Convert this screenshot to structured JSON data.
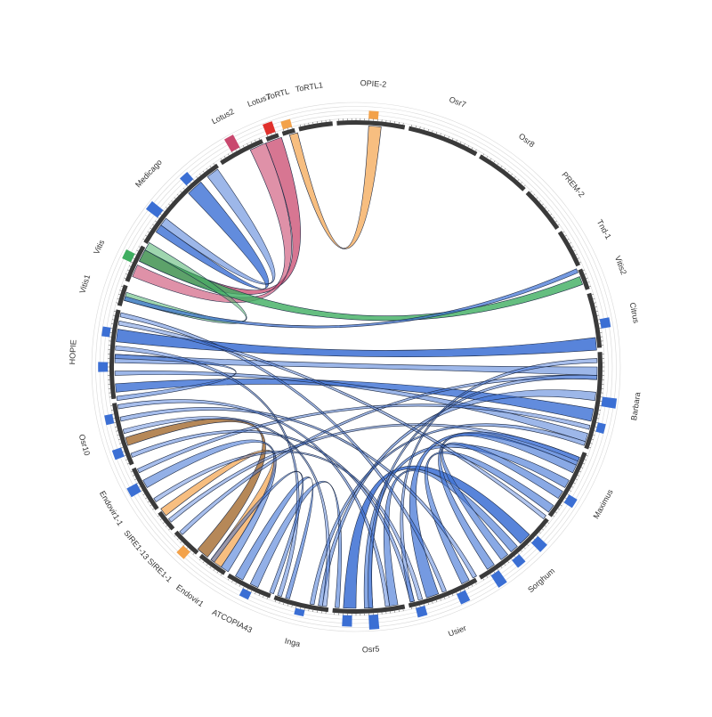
{
  "diagram": {
    "type": "circos-chord",
    "colors": {
      "band": "#3a3a3a",
      "blue": "#3b6fd4",
      "pink": "#c9486e",
      "orange": "#f3a24a",
      "green": "#3fae60",
      "brown": "#a46a2e",
      "red": "#e0312c",
      "guide": "#d8d8d8"
    },
    "segments": [
      {
        "id": "opie2",
        "label": "OPIE-2",
        "start": 355,
        "end": 12
      },
      {
        "id": "osr7",
        "label": "Osr7",
        "start": 12,
        "end": 30
      },
      {
        "id": "osr8",
        "label": "Osr8",
        "start": 30,
        "end": 44
      },
      {
        "id": "prem2",
        "label": "PREM-2",
        "start": 44,
        "end": 56
      },
      {
        "id": "tnd1",
        "label": "Tnd-1",
        "start": 56,
        "end": 66
      },
      {
        "id": "vitis2",
        "label": "Vitis2",
        "start": 66,
        "end": 72
      },
      {
        "id": "citrus",
        "label": "Citrus",
        "start": 72,
        "end": 86
      },
      {
        "id": "barbara",
        "label": "Barbara",
        "start": 86,
        "end": 110
      },
      {
        "id": "maximus",
        "label": "Maximus",
        "start": 110,
        "end": 128
      },
      {
        "id": "sorghum",
        "label": "Sorghum",
        "start": 128,
        "end": 150
      },
      {
        "id": "usier",
        "label": "Usier",
        "start": 150,
        "end": 168
      },
      {
        "id": "osr5",
        "label": "Osr5",
        "start": 168,
        "end": 186
      },
      {
        "id": "inga",
        "label": "Inga",
        "start": 186,
        "end": 200
      },
      {
        "id": "atcopia43",
        "label": "ATCOPIA43",
        "start": 200,
        "end": 212
      },
      {
        "id": "endovir1",
        "label": "Endovir1",
        "start": 212,
        "end": 220
      },
      {
        "id": "sire11",
        "label": "SIRE1-1",
        "start": 220,
        "end": 228
      },
      {
        "id": "sire113",
        "label": "SIRE1-13",
        "start": 228,
        "end": 234
      },
      {
        "id": "endovir11",
        "label": "Endovir1-1",
        "start": 234,
        "end": 246
      },
      {
        "id": "osr10",
        "label": "Osr10",
        "start": 246,
        "end": 262
      },
      {
        "id": "hopie",
        "label": "HOPIE",
        "start": 262,
        "end": 284
      },
      {
        "id": "vitis1",
        "label": "Vitis1",
        "start": 284,
        "end": 290
      },
      {
        "id": "vitis",
        "label": "Vitis",
        "start": 290,
        "end": 300
      },
      {
        "id": "medicago",
        "label": "Medicago",
        "start": 300,
        "end": 326
      },
      {
        "id": "lotus2",
        "label": "Lotus2",
        "start": 326,
        "end": 338
      },
      {
        "id": "lotus7",
        "label": "Lotus7",
        "start": 338,
        "end": 342
      },
      {
        "id": "tortl",
        "label": "ToRTL",
        "start": 342,
        "end": 346
      },
      {
        "id": "tortl1",
        "label": "ToRTL1",
        "start": 346,
        "end": 355
      }
    ],
    "histogram": [
      {
        "angle": 4,
        "value": 0.5,
        "color": "orange"
      },
      {
        "angle": 80,
        "value": 0.6,
        "color": "blue"
      },
      {
        "angle": 98,
        "value": 0.9,
        "color": "blue"
      },
      {
        "angle": 104,
        "value": 0.5,
        "color": "blue"
      },
      {
        "angle": 122,
        "value": 0.6,
        "color": "blue"
      },
      {
        "angle": 134,
        "value": 0.8,
        "color": "blue"
      },
      {
        "angle": 140,
        "value": 0.6,
        "color": "blue"
      },
      {
        "angle": 146,
        "value": 0.9,
        "color": "blue"
      },
      {
        "angle": 155,
        "value": 0.7,
        "color": "blue"
      },
      {
        "angle": 165,
        "value": 0.6,
        "color": "blue"
      },
      {
        "angle": 176,
        "value": 0.9,
        "color": "blue"
      },
      {
        "angle": 182,
        "value": 0.7,
        "color": "blue"
      },
      {
        "angle": 193,
        "value": 0.4,
        "color": "blue"
      },
      {
        "angle": 206,
        "value": 0.5,
        "color": "blue"
      },
      {
        "angle": 223,
        "value": 0.6,
        "color": "orange"
      },
      {
        "angle": 241,
        "value": 0.7,
        "color": "blue"
      },
      {
        "angle": 250,
        "value": 0.6,
        "color": "blue"
      },
      {
        "angle": 258,
        "value": 0.5,
        "color": "blue"
      },
      {
        "angle": 270,
        "value": 0.6,
        "color": "blue"
      },
      {
        "angle": 278,
        "value": 0.5,
        "color": "blue"
      },
      {
        "angle": 296,
        "value": 0.6,
        "color": "green"
      },
      {
        "angle": 308,
        "value": 0.9,
        "color": "blue"
      },
      {
        "angle": 318,
        "value": 0.6,
        "color": "blue"
      },
      {
        "angle": 331,
        "value": 0.9,
        "color": "pink"
      },
      {
        "angle": 340,
        "value": 0.7,
        "color": "red"
      },
      {
        "angle": 344,
        "value": 0.5,
        "color": "orange"
      }
    ],
    "links": [
      {
        "a": [
          338,
          342
        ],
        "b": [
          296,
          299
        ],
        "color": "pink",
        "opacity": 0.75
      },
      {
        "a": [
          334,
          338
        ],
        "b": [
          292,
          295
        ],
        "color": "pink",
        "opacity": 0.6
      },
      {
        "a": [
          3,
          6
        ],
        "b": [
          344,
          346
        ],
        "color": "orange",
        "opacity": 0.7
      },
      {
        "a": [
          316,
          320
        ],
        "b": [
          304,
          306
        ],
        "color": "blue",
        "opacity": 0.8
      },
      {
        "a": [
          322,
          325
        ],
        "b": [
          306,
          308
        ],
        "color": "blue",
        "opacity": 0.5
      },
      {
        "a": [
          296,
          299
        ],
        "b": [
          68,
          70
        ],
        "color": "green",
        "opacity": 0.8
      },
      {
        "a": [
          299,
          301
        ],
        "b": [
          286,
          288
        ],
        "color": "green",
        "opacity": 0.5
      },
      {
        "a": [
          286,
          287
        ],
        "b": [
          66,
          67
        ],
        "color": "blue",
        "opacity": 0.7
      },
      {
        "a": [
          276,
          279
        ],
        "b": [
          83,
          86
        ],
        "color": "blue",
        "opacity": 0.85
      },
      {
        "a": [
          264,
          266
        ],
        "b": [
          100,
          103
        ],
        "color": "blue",
        "opacity": 0.8
      },
      {
        "a": [
          271,
          273
        ],
        "b": [
          90,
          92
        ],
        "color": "blue",
        "opacity": 0.5
      },
      {
        "a": [
          268,
          269
        ],
        "b": [
          106,
          108
        ],
        "color": "blue",
        "opacity": 0.5
      },
      {
        "a": [
          262,
          263
        ],
        "b": [
          272,
          273
        ],
        "color": "blue",
        "opacity": 0.5
      },
      {
        "a": [
          251,
          253
        ],
        "b": [
          218,
          221
        ],
        "color": "brown",
        "opacity": 0.8
      },
      {
        "a": [
          232,
          234
        ],
        "b": [
          214,
          217
        ],
        "color": "orange",
        "opacity": 0.7
      },
      {
        "a": [
          240,
          242
        ],
        "b": [
          212,
          214
        ],
        "color": "blue",
        "opacity": 0.55
      },
      {
        "a": [
          208,
          210
        ],
        "b": [
          196,
          197
        ],
        "color": "blue",
        "opacity": 0.6
      },
      {
        "a": [
          204,
          206
        ],
        "b": [
          184,
          185
        ],
        "color": "blue",
        "opacity": 0.55
      },
      {
        "a": [
          180,
          183
        ],
        "b": [
          134,
          137
        ],
        "color": "blue",
        "opacity": 0.85
      },
      {
        "a": [
          176,
          178
        ],
        "b": [
          118,
          120
        ],
        "color": "blue",
        "opacity": 0.6
      },
      {
        "a": [
          170,
          172
        ],
        "b": [
          138,
          140
        ],
        "color": "blue",
        "opacity": 0.6
      },
      {
        "a": [
          160,
          163
        ],
        "b": [
          112,
          114
        ],
        "color": "blue",
        "opacity": 0.7
      },
      {
        "a": [
          152,
          154
        ],
        "b": [
          125,
          127
        ],
        "color": "blue",
        "opacity": 0.6
      },
      {
        "a": [
          145,
          147
        ],
        "b": [
          114,
          116
        ],
        "color": "blue",
        "opacity": 0.6
      },
      {
        "a": [
          141,
          143
        ],
        "b": [
          121,
          123
        ],
        "color": "blue",
        "opacity": 0.6
      },
      {
        "a": [
          188,
          189
        ],
        "b": [
          96,
          98
        ],
        "color": "blue",
        "opacity": 0.5
      },
      {
        "a": [
          190,
          191
        ],
        "b": [
          108,
          109
        ],
        "color": "blue",
        "opacity": 0.5
      },
      {
        "a": [
          226,
          227
        ],
        "b": [
          92,
          93
        ],
        "color": "blue",
        "opacity": 0.45
      },
      {
        "a": [
          244,
          245
        ],
        "b": [
          104,
          105
        ],
        "color": "blue",
        "opacity": 0.45
      },
      {
        "a": [
          257,
          258
        ],
        "b": [
          150,
          151
        ],
        "color": "blue",
        "opacity": 0.45
      },
      {
        "a": [
          282,
          283
        ],
        "b": [
          158,
          159
        ],
        "color": "blue",
        "opacity": 0.45
      },
      {
        "a": [
          248,
          249
        ],
        "b": [
          166,
          167
        ],
        "color": "blue",
        "opacity": 0.45
      },
      {
        "a": [
          260,
          261
        ],
        "b": [
          172,
          173
        ],
        "color": "blue",
        "opacity": 0.45
      },
      {
        "a": [
          198,
          199
        ],
        "b": [
          274,
          275
        ],
        "color": "blue",
        "opacity": 0.45
      },
      {
        "a": [
          230,
          231
        ],
        "b": [
          112,
          113
        ],
        "color": "blue",
        "opacity": 0.4
      },
      {
        "a": [
          236,
          237
        ],
        "b": [
          164,
          165
        ],
        "color": "blue",
        "opacity": 0.4
      },
      {
        "a": [
          187,
          188
        ],
        "b": [
          254,
          255
        ],
        "color": "blue",
        "opacity": 0.4
      },
      {
        "a": [
          280,
          281
        ],
        "b": [
          128,
          129
        ],
        "color": "blue",
        "opacity": 0.4
      },
      {
        "a": [
          176,
          177
        ],
        "b": [
          92,
          93
        ],
        "color": "blue",
        "opacity": 0.45
      },
      {
        "a": [
          166,
          167
        ],
        "b": [
          88,
          89
        ],
        "color": "blue",
        "opacity": 0.45
      },
      {
        "a": [
          200,
          201
        ],
        "b": [
          216,
          217
        ],
        "color": "blue",
        "opacity": 0.5
      }
    ]
  }
}
